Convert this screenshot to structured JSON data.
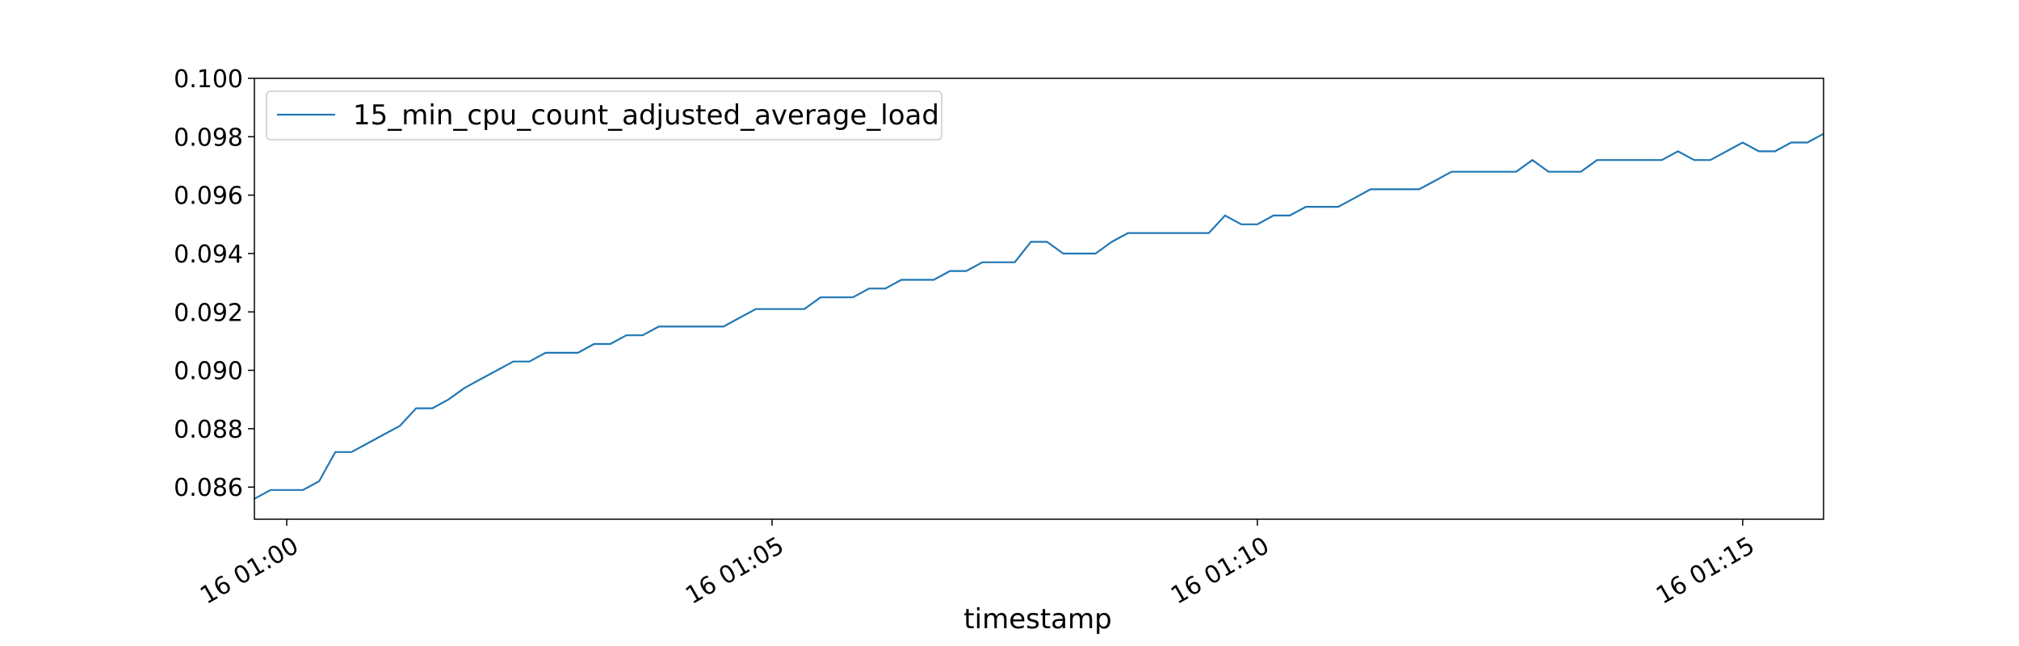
{
  "colors": {
    "series": "#1f77b4",
    "axes": "#000000",
    "legend_border": "#cccccc"
  },
  "chart_data": {
    "type": "line",
    "xlabel": "timestamp",
    "ylabel": "",
    "title": "",
    "grid": false,
    "legend_placement": "top-left",
    "xlim": [
      "16 00:59:40",
      "16 01:15:50"
    ],
    "ylim": [
      0.0849,
      0.1
    ],
    "x_ticks": [
      "16 01:00",
      "16 01:05",
      "16 01:10",
      "16 01:15"
    ],
    "y_ticks": [
      "0.086",
      "0.088",
      "0.090",
      "0.092",
      "0.094",
      "0.096",
      "0.098",
      "0.100"
    ],
    "series": [
      {
        "name": "15_min_cpu_count_adjusted_average_load",
        "x": [
          "16 00:59:40",
          "16 00:59:50",
          "16 01:00:00",
          "16 01:00:10",
          "16 01:00:20",
          "16 01:00:30",
          "16 01:00:40",
          "16 01:00:50",
          "16 01:01:00",
          "16 01:01:10",
          "16 01:01:20",
          "16 01:01:30",
          "16 01:01:40",
          "16 01:01:50",
          "16 01:02:00",
          "16 01:02:10",
          "16 01:02:20",
          "16 01:02:30",
          "16 01:02:40",
          "16 01:02:50",
          "16 01:03:00",
          "16 01:03:10",
          "16 01:03:20",
          "16 01:03:30",
          "16 01:03:40",
          "16 01:03:50",
          "16 01:04:00",
          "16 01:04:10",
          "16 01:04:20",
          "16 01:04:30",
          "16 01:04:40",
          "16 01:04:50",
          "16 01:05:00",
          "16 01:05:10",
          "16 01:05:20",
          "16 01:05:30",
          "16 01:05:40",
          "16 01:05:50",
          "16 01:06:00",
          "16 01:06:10",
          "16 01:06:20",
          "16 01:06:30",
          "16 01:06:40",
          "16 01:06:50",
          "16 01:07:00",
          "16 01:07:10",
          "16 01:07:20",
          "16 01:07:30",
          "16 01:07:40",
          "16 01:07:50",
          "16 01:08:00",
          "16 01:08:10",
          "16 01:08:20",
          "16 01:08:30",
          "16 01:08:40",
          "16 01:08:50",
          "16 01:09:00",
          "16 01:09:10",
          "16 01:09:20",
          "16 01:09:30",
          "16 01:09:40",
          "16 01:09:50",
          "16 01:10:00",
          "16 01:10:10",
          "16 01:10:20",
          "16 01:10:30",
          "16 01:10:40",
          "16 01:10:50",
          "16 01:11:00",
          "16 01:11:10",
          "16 01:11:20",
          "16 01:11:30",
          "16 01:11:40",
          "16 01:11:50",
          "16 01:12:00",
          "16 01:12:10",
          "16 01:12:20",
          "16 01:12:30",
          "16 01:12:40",
          "16 01:12:50",
          "16 01:13:00",
          "16 01:13:10",
          "16 01:13:20",
          "16 01:13:30",
          "16 01:13:40",
          "16 01:13:50",
          "16 01:14:00",
          "16 01:14:10",
          "16 01:14:20",
          "16 01:14:30",
          "16 01:14:40",
          "16 01:14:50",
          "16 01:15:00",
          "16 01:15:10",
          "16 01:15:20",
          "16 01:15:30",
          "16 01:15:40",
          "16 01:15:50"
        ],
        "y": [
          0.0856,
          0.0859,
          0.0859,
          0.0859,
          0.0862,
          0.0872,
          0.0872,
          0.0875,
          0.0878,
          0.0881,
          0.0887,
          0.0887,
          0.089,
          0.0894,
          0.0897,
          0.09,
          0.0903,
          0.0903,
          0.0906,
          0.0906,
          0.0906,
          0.0909,
          0.0909,
          0.0912,
          0.0912,
          0.0915,
          0.0915,
          0.0915,
          0.0915,
          0.0915,
          0.0918,
          0.0921,
          0.0921,
          0.0921,
          0.0921,
          0.0925,
          0.0925,
          0.0925,
          0.0928,
          0.0928,
          0.0931,
          0.0931,
          0.0931,
          0.0934,
          0.0934,
          0.0937,
          0.0937,
          0.0937,
          0.0944,
          0.0944,
          0.094,
          0.094,
          0.094,
          0.0944,
          0.0947,
          0.0947,
          0.0947,
          0.0947,
          0.0947,
          0.0947,
          0.0953,
          0.095,
          0.095,
          0.0953,
          0.0953,
          0.0956,
          0.0956,
          0.0956,
          0.0959,
          0.0962,
          0.0962,
          0.0962,
          0.0962,
          0.0965,
          0.0968,
          0.0968,
          0.0968,
          0.0968,
          0.0968,
          0.0972,
          0.0968,
          0.0968,
          0.0968,
          0.0972,
          0.0972,
          0.0972,
          0.0972,
          0.0972,
          0.0975,
          0.0972,
          0.0972,
          0.0975,
          0.0978,
          0.0975,
          0.0975,
          0.0978,
          0.0978,
          0.0981
        ]
      }
    ]
  }
}
